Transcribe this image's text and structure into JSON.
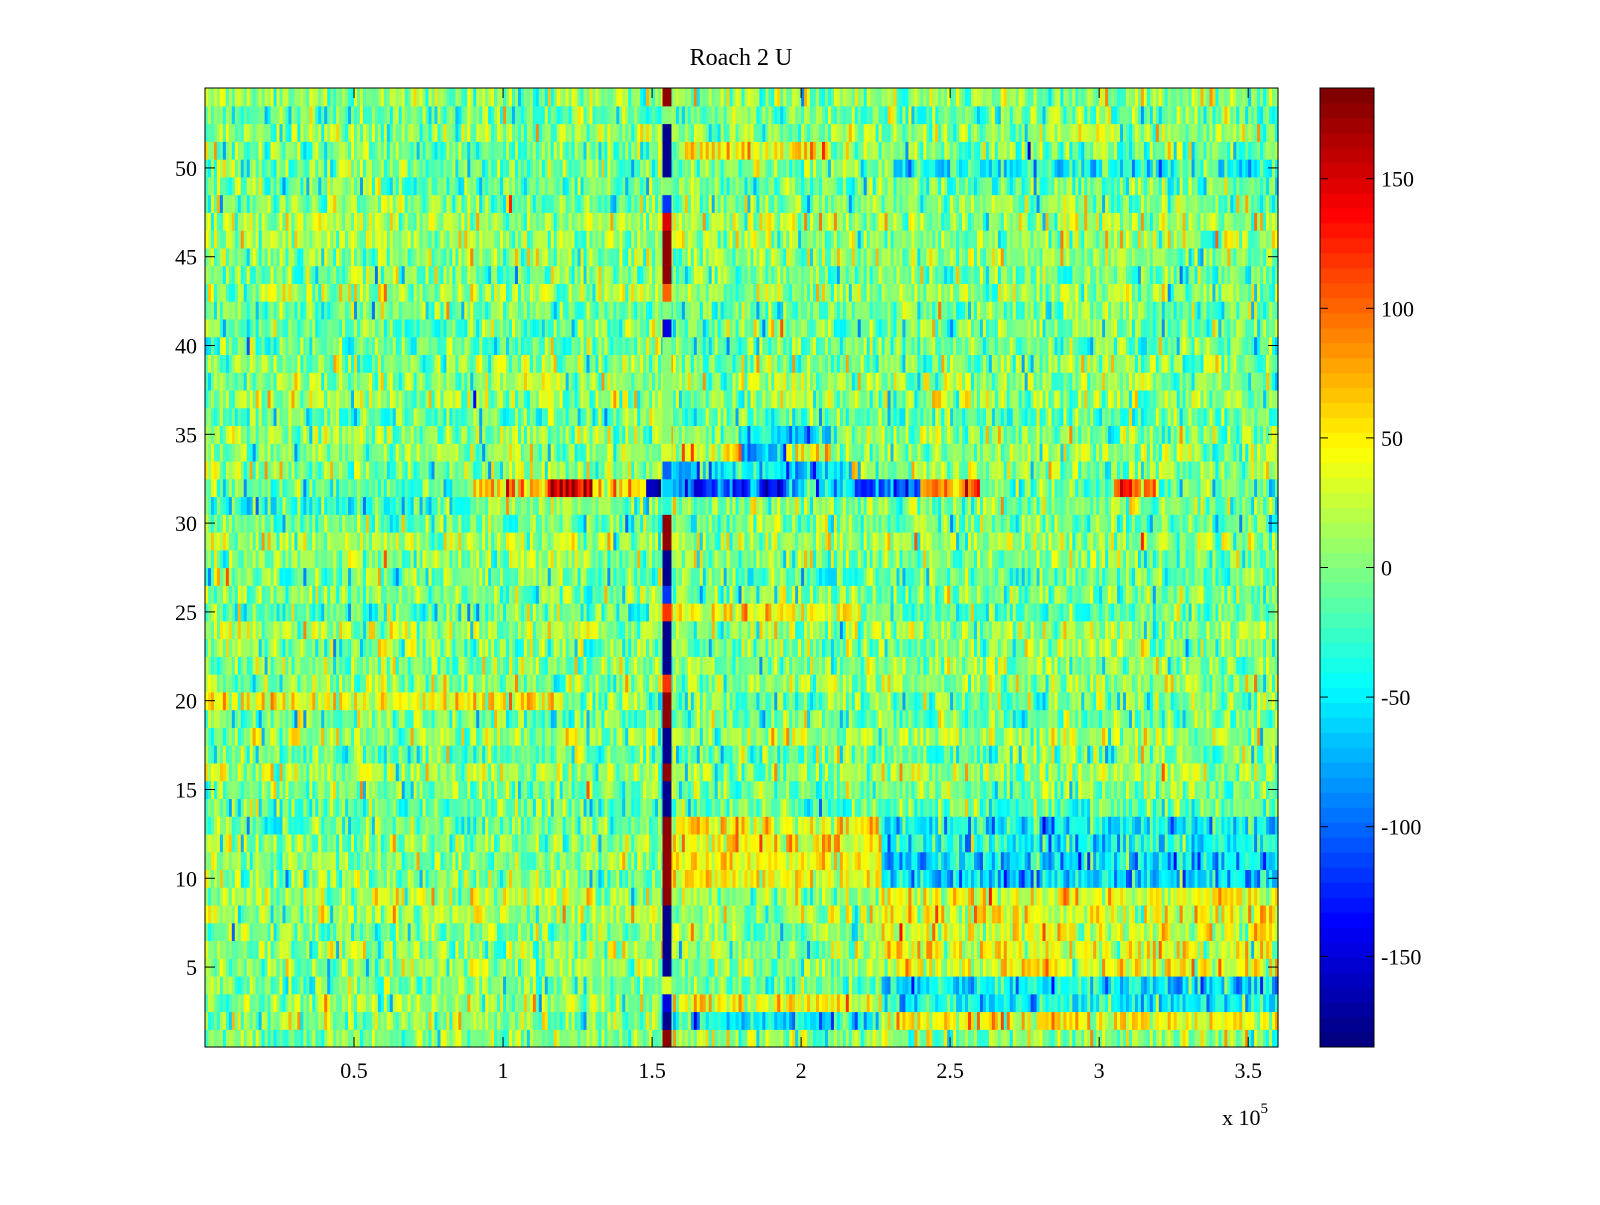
{
  "chart_data": {
    "type": "heatmap",
    "title": "Roach 2 U",
    "xlabel": "",
    "ylabel": "",
    "x_multiplier_label": "x 10",
    "x_multiplier_exponent": "5",
    "xlim": [
      0,
      360000
    ],
    "ylim": [
      0.5,
      54.5
    ],
    "rows": 54,
    "x_ticks": [
      50000,
      100000,
      150000,
      200000,
      250000,
      300000,
      350000
    ],
    "x_tick_labels": [
      "0.5",
      "1",
      "1.5",
      "2",
      "2.5",
      "3",
      "3.5"
    ],
    "y_ticks": [
      5,
      10,
      15,
      20,
      25,
      30,
      35,
      40,
      45,
      50
    ],
    "y_tick_labels": [
      "5",
      "10",
      "15",
      "20",
      "25",
      "30",
      "35",
      "40",
      "45",
      "50"
    ],
    "colormap": "jet",
    "clim": [
      -185,
      185
    ],
    "colorbar": {
      "ticks": [
        -150,
        -100,
        -50,
        0,
        50,
        100,
        150
      ],
      "tick_labels": [
        "-150",
        "-100",
        "-50",
        "0",
        "50",
        "100",
        "150"
      ],
      "placement": "right"
    },
    "noise_std": 30,
    "stripe": {
      "x_range": [
        153500,
        156500
      ],
      "row_values": [
        180,
        -180,
        -150,
        30,
        -180,
        -180,
        -180,
        -180,
        180,
        180,
        180,
        180,
        180,
        -180,
        -180,
        180,
        -180,
        -180,
        180,
        180,
        120,
        -180,
        -180,
        -180,
        120,
        -120,
        -180,
        -180,
        180,
        180,
        -30,
        -60,
        -100,
        30,
        0,
        0,
        0,
        0,
        0,
        0,
        -150,
        0,
        100,
        180,
        180,
        180,
        150,
        -120,
        0,
        -180,
        -180,
        -180,
        0,
        180
      ]
    },
    "segments": [
      {
        "rows": [
          31,
          31
        ],
        "x": [
          0,
          90000
        ],
        "mean": -35
      },
      {
        "rows": [
          32,
          32
        ],
        "x": [
          90000,
          115000
        ],
        "mean": 70
      },
      {
        "rows": [
          32,
          32
        ],
        "x": [
          115000,
          130000
        ],
        "mean": 150
      },
      {
        "rows": [
          32,
          32
        ],
        "x": [
          130000,
          148000
        ],
        "mean": 50
      },
      {
        "rows": [
          32,
          32
        ],
        "x": [
          148000,
          195000
        ],
        "mean": -120
      },
      {
        "rows": [
          32,
          32
        ],
        "x": [
          195000,
          215000
        ],
        "mean": -55
      },
      {
        "rows": [
          32,
          32
        ],
        "x": [
          215000,
          240000
        ],
        "mean": -110
      },
      {
        "rows": [
          32,
          32
        ],
        "x": [
          240000,
          260000
        ],
        "mean": 100
      },
      {
        "rows": [
          32,
          32
        ],
        "x": [
          305000,
          320000
        ],
        "mean": 90
      },
      {
        "rows": [
          33,
          33
        ],
        "x": [
          156500,
          215000
        ],
        "mean": -65
      },
      {
        "rows": [
          34,
          34
        ],
        "x": [
          156500,
          210000
        ],
        "mean": 40
      },
      {
        "rows": [
          34,
          34
        ],
        "x": [
          180000,
          195000
        ],
        "mean": -80
      },
      {
        "rows": [
          10,
          13
        ],
        "x": [
          156500,
          227000
        ],
        "mean": 45
      },
      {
        "rows": [
          10,
          11
        ],
        "x": [
          227000,
          360000
        ],
        "mean": -60
      },
      {
        "rows": [
          12,
          13
        ],
        "x": [
          227000,
          360000
        ],
        "mean": -45
      },
      {
        "rows": [
          5,
          9
        ],
        "x": [
          227000,
          360000
        ],
        "mean": 40
      },
      {
        "rows": [
          3,
          4
        ],
        "x": [
          227000,
          360000
        ],
        "mean": -50
      },
      {
        "rows": [
          3,
          3
        ],
        "x": [
          156500,
          227000
        ],
        "mean": 45
      },
      {
        "rows": [
          2,
          2
        ],
        "x": [
          156500,
          227000
        ],
        "mean": -50
      },
      {
        "rows": [
          2,
          2
        ],
        "x": [
          227000,
          360000
        ],
        "mean": 45
      },
      {
        "rows": [
          25,
          25
        ],
        "x": [
          156500,
          220000
        ],
        "mean": 45
      },
      {
        "rows": [
          51,
          51
        ],
        "x": [
          160000,
          210000
        ],
        "mean": 45
      },
      {
        "rows": [
          50,
          50
        ],
        "x": [
          230000,
          360000
        ],
        "mean": -40
      },
      {
        "rows": [
          20,
          20
        ],
        "x": [
          0,
          120000
        ],
        "mean": 40
      },
      {
        "rows": [
          35,
          35
        ],
        "x": [
          180000,
          210000
        ],
        "mean": -50
      }
    ]
  }
}
